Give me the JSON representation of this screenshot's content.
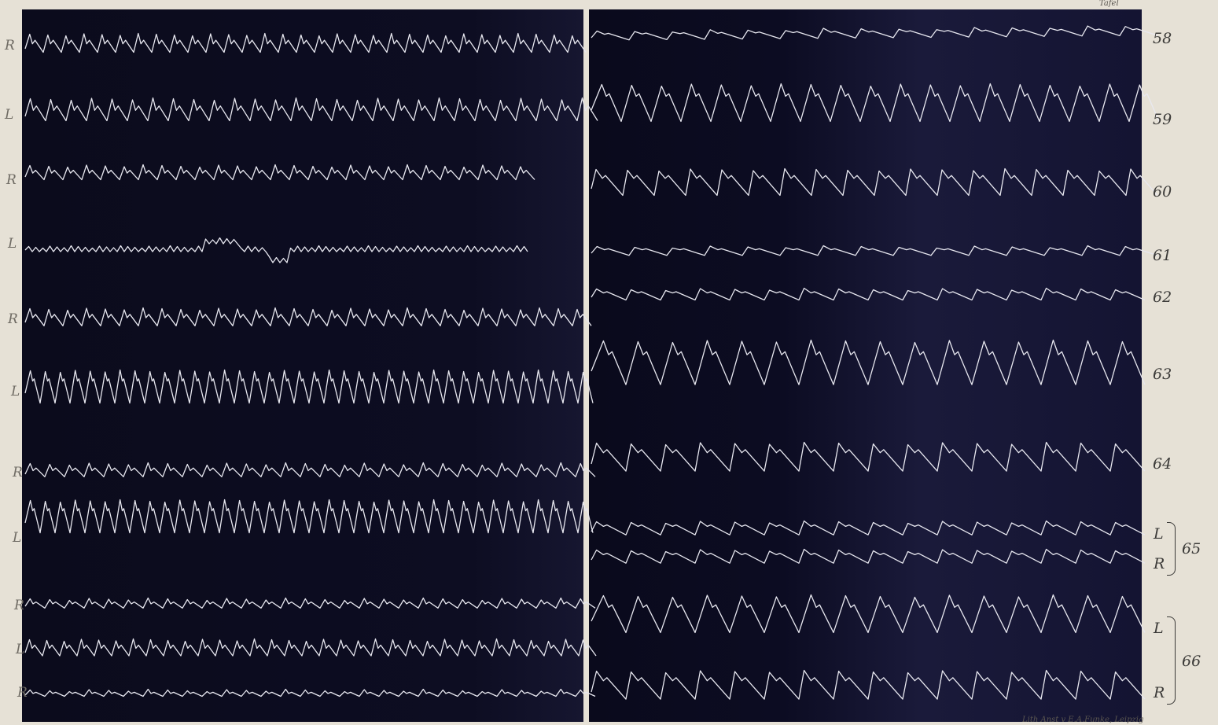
{
  "colors": {
    "paper": "#e6e1d6",
    "panel": "#0b0b1c",
    "trace": "#e8e8f0",
    "ink": "#3b3a38"
  },
  "left_panel": {
    "side_labels": [
      "R",
      "L",
      "R",
      "L",
      "R",
      "L",
      "R",
      "L",
      "R",
      "L",
      "R"
    ]
  },
  "right_panel": {
    "trace_numbers": [
      "58",
      "59",
      "60",
      "61",
      "62",
      "63",
      "64",
      "65",
      "66"
    ],
    "pair_65": {
      "top": "L",
      "bottom": "R"
    },
    "pair_66": {
      "top": "L",
      "bottom": "R"
    }
  },
  "corner_text": {
    "top_right": "Tafel",
    "bottom_right": "Lith Anst v E.A.Funke, Leipzig"
  }
}
